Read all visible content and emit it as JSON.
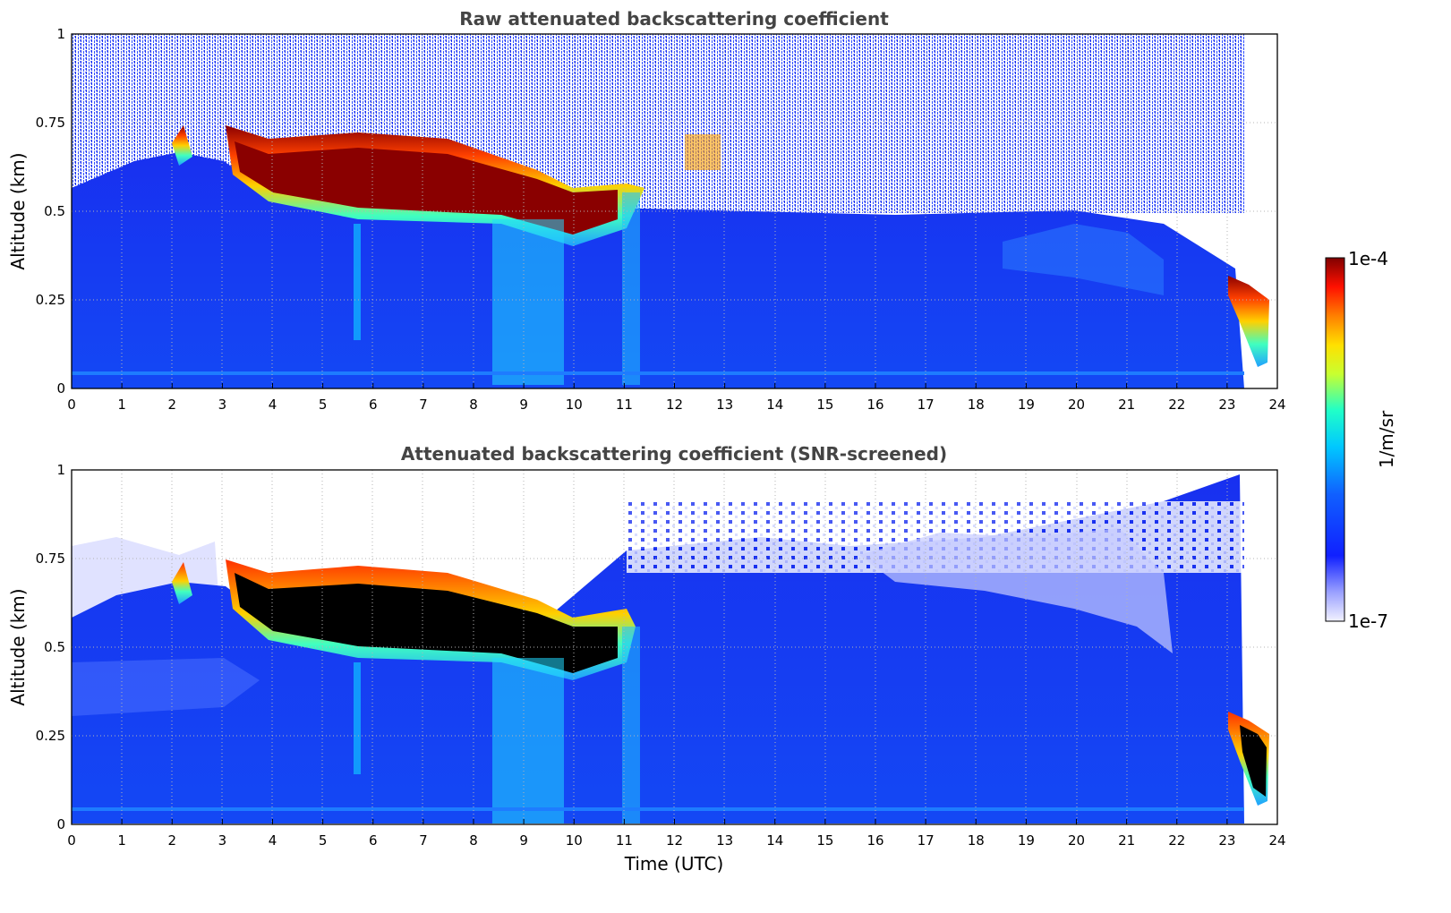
{
  "chart_data": [
    {
      "type": "heatmap",
      "title": "Raw attenuated backscattering coefficient",
      "xlabel": "",
      "ylabel": "Altitude (km)",
      "xlim": [
        0,
        24
      ],
      "ylim": [
        0,
        1
      ],
      "xticks": [
        "0",
        "1",
        "2",
        "3",
        "4",
        "5",
        "6",
        "7",
        "8",
        "9",
        "10",
        "11",
        "12",
        "13",
        "14",
        "15",
        "16",
        "17",
        "18",
        "19",
        "20",
        "21",
        "22",
        "23",
        "24"
      ],
      "yticks": [
        "0",
        "0.25",
        "0.5",
        "0.75",
        "1"
      ],
      "grid": true,
      "features": {
        "cloud_layer": [
          {
            "t": 3.0,
            "bottom": 0.62,
            "top": 0.75
          },
          {
            "t": 3.5,
            "bottom": 0.55,
            "top": 0.7
          },
          {
            "t": 4.0,
            "bottom": 0.52,
            "top": 0.7
          },
          {
            "t": 5.0,
            "bottom": 0.5,
            "top": 0.71
          },
          {
            "t": 6.0,
            "bottom": 0.49,
            "top": 0.7
          },
          {
            "t": 7.0,
            "bottom": 0.48,
            "top": 0.69
          },
          {
            "t": 8.0,
            "bottom": 0.47,
            "top": 0.67
          },
          {
            "t": 9.0,
            "bottom": 0.45,
            "top": 0.63
          },
          {
            "t": 9.8,
            "bottom": 0.42,
            "top": 0.58
          },
          {
            "t": 10.5,
            "bottom": 0.46,
            "top": 0.57
          },
          {
            "t": 11.0,
            "bottom": 0.47,
            "top": 0.56
          }
        ],
        "low_cloud_end": {
          "t_start": 23.0,
          "t_end": 23.8,
          "bottom": 0.07,
          "top": 0.3
        }
      }
    },
    {
      "type": "heatmap",
      "title": "Attenuated backscattering coefficient (SNR-screened)",
      "xlabel": "Time (UTC)",
      "ylabel": "Altitude (km)",
      "xlim": [
        0,
        24
      ],
      "ylim": [
        0,
        1
      ],
      "xticks": [
        "0",
        "1",
        "2",
        "3",
        "4",
        "5",
        "6",
        "7",
        "8",
        "9",
        "10",
        "11",
        "12",
        "13",
        "14",
        "15",
        "16",
        "17",
        "18",
        "19",
        "20",
        "21",
        "22",
        "23",
        "24"
      ],
      "yticks": [
        "0",
        "0.25",
        "0.5",
        "0.75",
        "1"
      ],
      "grid": true,
      "saturated_color": "#000000"
    }
  ],
  "colorbar": {
    "label": "1/m/sr",
    "max_label": "1e-4",
    "min_label": "1e-7",
    "colormap": "jet",
    "scale": "log"
  },
  "colors": {
    "background_blue": "#1a3cf0",
    "title_gray": "#444444",
    "grid": "#b4b4b4"
  }
}
